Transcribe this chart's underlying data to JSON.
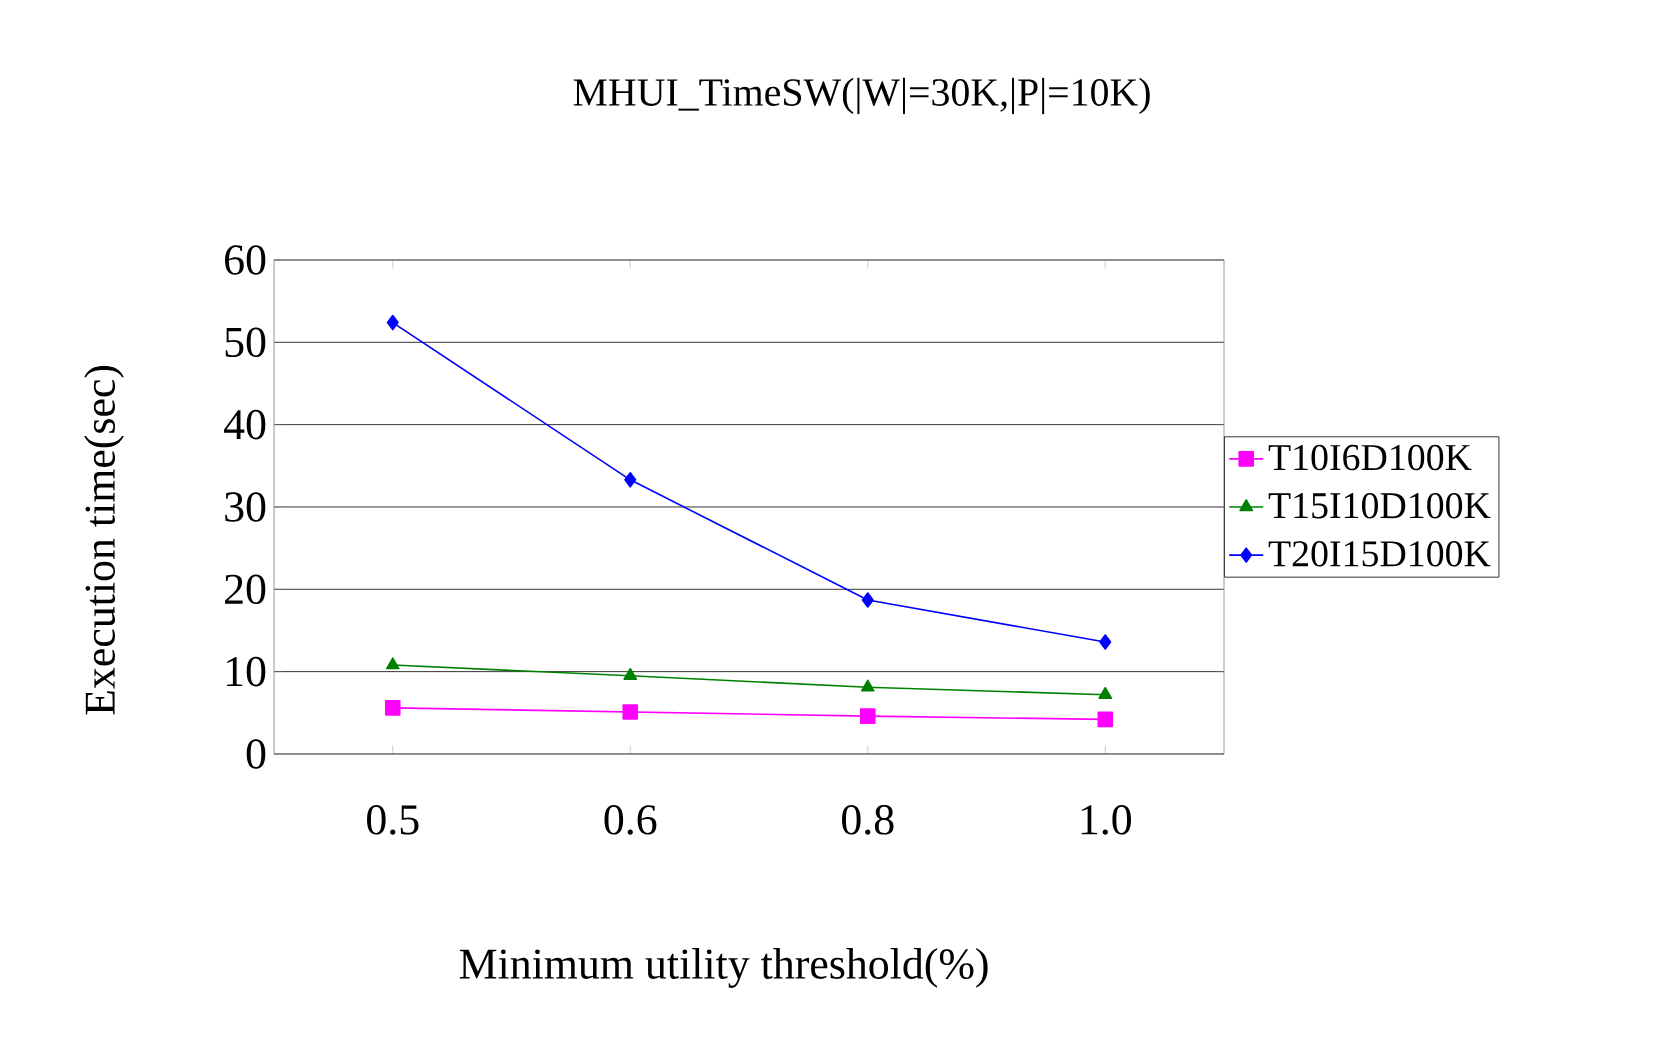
{
  "chart_data": {
    "type": "line",
    "title": "MHUI_TimeSW(|W|=30K,|P|=10K)",
    "xlabel": "Minimum utility threshold(%)",
    "ylabel": "Execution time(sec)",
    "categories": [
      "0.5",
      "0.6",
      "0.8",
      "1.0"
    ],
    "series": [
      {
        "name": "T10I6D100K",
        "color": "#ff00ff",
        "marker": "square",
        "values": [
          5.6,
          5.1,
          4.6,
          4.2
        ]
      },
      {
        "name": "T15I10D100K",
        "color": "#008000",
        "marker": "triangle",
        "values": [
          10.8,
          9.5,
          8.1,
          7.2
        ]
      },
      {
        "name": "T20I15D100K",
        "color": "#0000ff",
        "marker": "diamond",
        "values": [
          52.4,
          33.3,
          18.7,
          13.6
        ]
      }
    ],
    "ylim": [
      0,
      60
    ],
    "yticks": [
      0,
      10,
      20,
      30,
      40,
      50,
      60
    ],
    "grid": "y",
    "legend": "right",
    "line_style": "solid"
  }
}
